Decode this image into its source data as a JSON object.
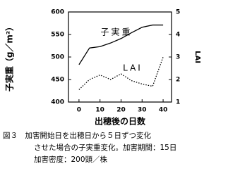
{
  "chart_data": {
    "type": "line",
    "x_label": "出穂後の日数",
    "y_label": "子実重（g／m²）",
    "y2_label": "LAI",
    "x": [
      0,
      5,
      10,
      15,
      20,
      25,
      30,
      35,
      40
    ],
    "series": [
      {
        "name": "子実重",
        "color": "#000000",
        "line_style": "solid",
        "values": [
          483,
          520,
          523,
          531,
          541,
          554,
          566,
          571,
          571
        ]
      },
      {
        "name": "LAI",
        "color": "#000000",
        "line_style": "dotted",
        "axis": "y2",
        "values": [
          1.55,
          2.0,
          2.2,
          2.0,
          2.25,
          1.95,
          1.8,
          1.7,
          3.0
        ]
      }
    ],
    "xlim": [
      -5,
      44
    ],
    "xticks": [
      0,
      10,
      20,
      30,
      40
    ],
    "ylim": [
      400,
      600
    ],
    "yticks": [
      400,
      450,
      500,
      550,
      600
    ],
    "y2lim": [
      1,
      5
    ],
    "y2ticks": [
      1,
      2,
      3,
      4,
      5
    ],
    "caption": [
      "図３　加害開始日を出穂日から５日ずつ変化",
      "させた場合の子実重変化。加害期間：15日",
      "加害密度：200頭／株"
    ]
  }
}
